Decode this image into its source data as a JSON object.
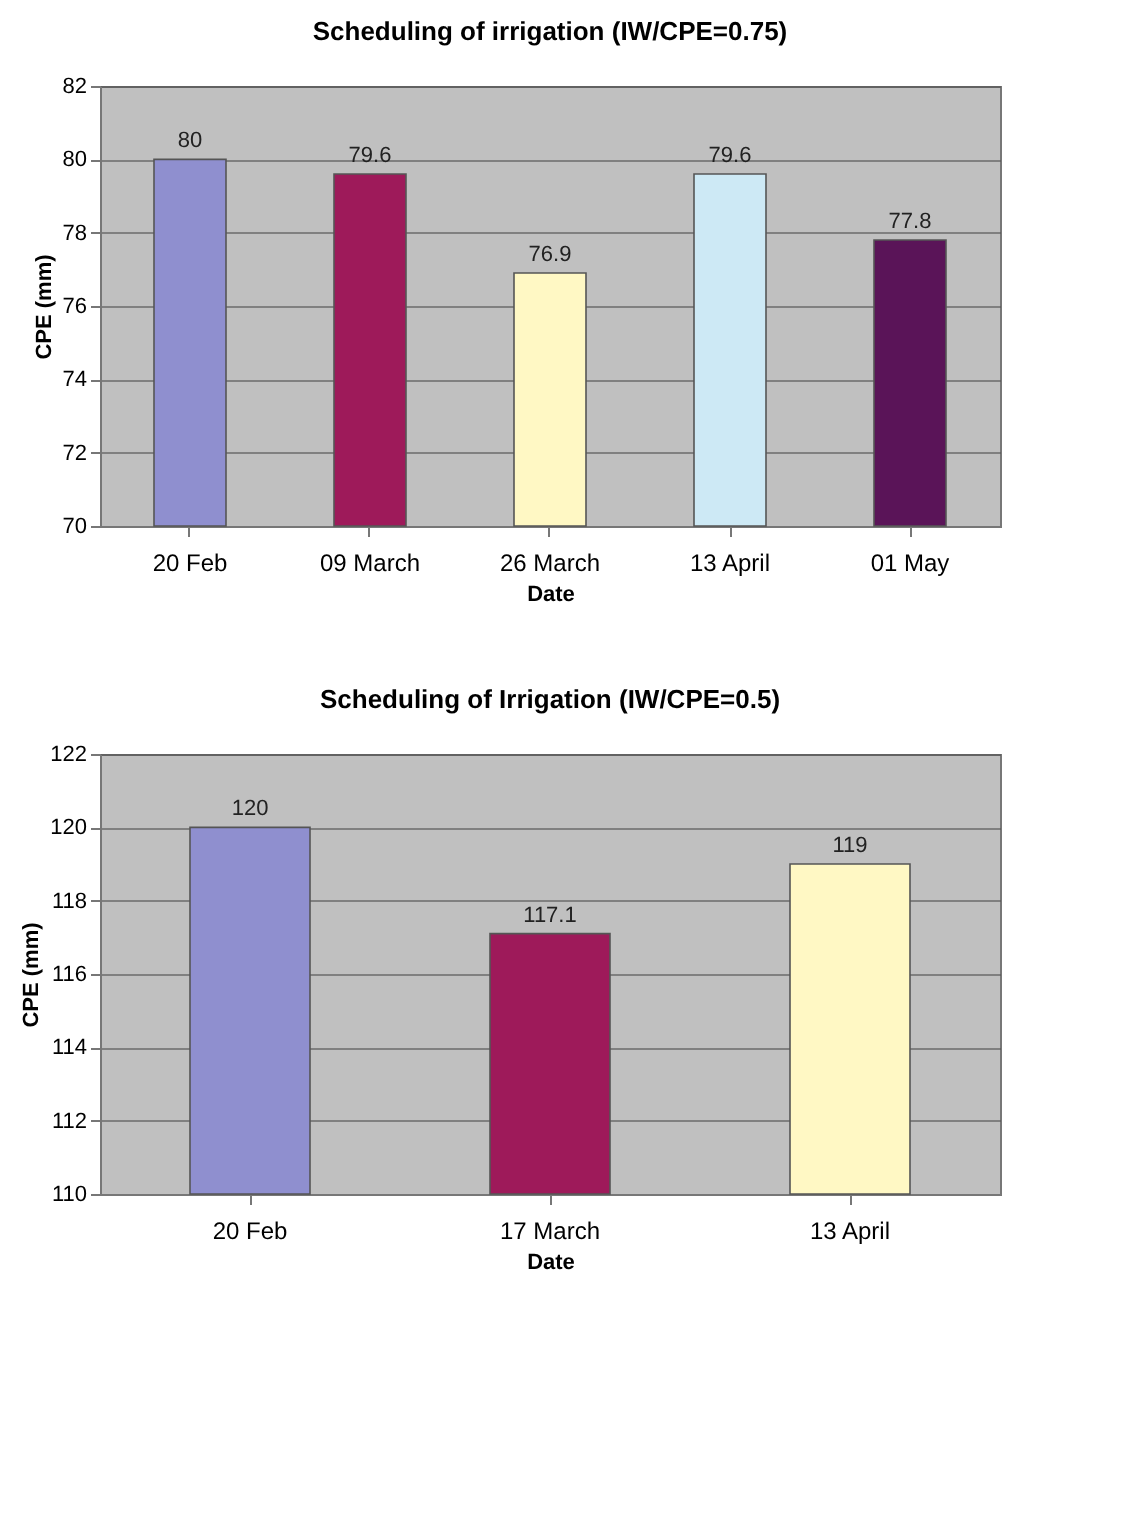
{
  "chart_data": [
    {
      "type": "bar",
      "title": "Scheduling of irrigation (IW/CPE=0.75)",
      "xlabel": "Date",
      "ylabel": "CPE (mm)",
      "categories": [
        "20 Feb",
        "09 March",
        "26 March",
        "13 April",
        "01 May"
      ],
      "values": [
        80,
        79.6,
        76.9,
        79.6,
        77.8
      ],
      "colors": [
        "#8f8fcf",
        "#9e1a5a",
        "#fff8c4",
        "#cde9f5",
        "#5a1458"
      ],
      "ylim": [
        70,
        82
      ],
      "yticks": [
        70,
        72,
        74,
        76,
        78,
        80,
        82
      ],
      "grid": "y",
      "data_labels": true
    },
    {
      "type": "bar",
      "title": "Scheduling of Irrigation (IW/CPE=0.5)",
      "xlabel": "Date",
      "ylabel": "CPE (mm)",
      "categories": [
        "20 Feb",
        "17 March",
        "13 April"
      ],
      "values": [
        120,
        117.1,
        119
      ],
      "colors": [
        "#8f8fcf",
        "#9e1a5a",
        "#fff8c4"
      ],
      "ylim": [
        110,
        122
      ],
      "yticks": [
        110,
        112,
        114,
        116,
        118,
        120,
        122
      ],
      "grid": "y",
      "data_labels": true
    }
  ]
}
